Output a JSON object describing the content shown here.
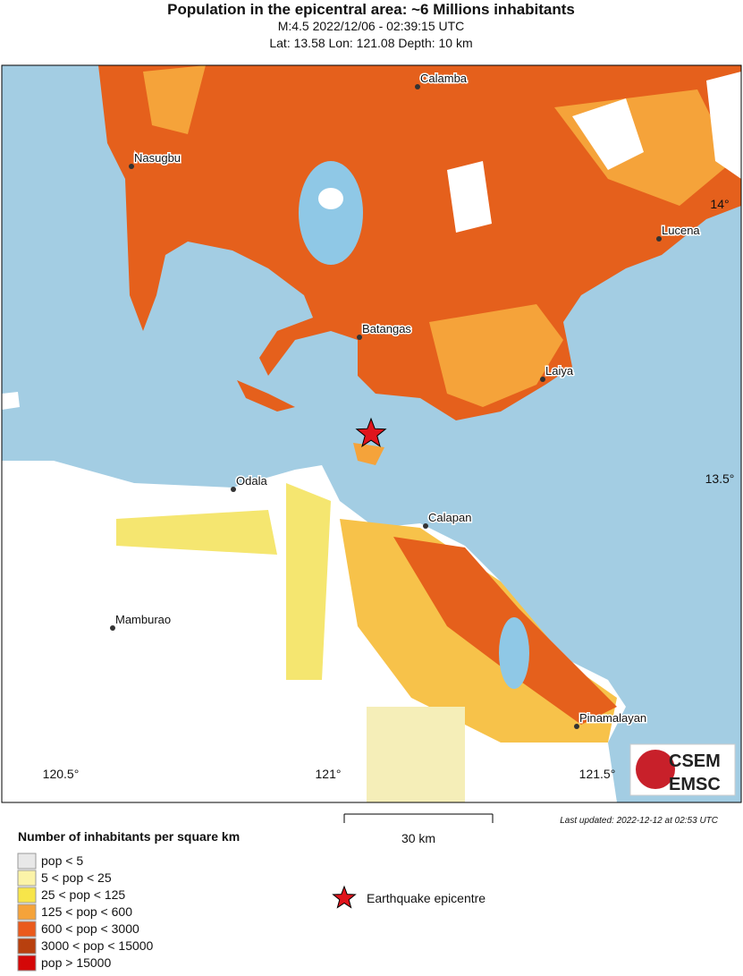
{
  "header": {
    "title": "Population in the epicentral area: ~6 Millions inhabitants",
    "line1": "M:4.5 2022/12/06 - 02:39:15 UTC",
    "line2": "Lat: 13.58 Lon: 121.08 Depth: 10 km"
  },
  "map": {
    "cities": [
      "Calamba",
      "Nasugbu",
      "Lucena",
      "Batangas",
      "Laiya",
      "Odala",
      "Calapan",
      "Mamburao",
      "Pinamalayan"
    ],
    "lat_labels": [
      "14°",
      "13.5°"
    ],
    "lon_labels": [
      "120.5°",
      "121°",
      "121.5°"
    ],
    "logo": [
      "CSEM",
      "EMSC"
    ]
  },
  "scale": {
    "label": "30 km"
  },
  "last_updated": "Last updated: 2022-12-12 at 02:53 UTC",
  "legend": {
    "title": "Number of inhabitants per square km",
    "items": [
      {
        "label": "pop < 5",
        "color": "#e8e8e8"
      },
      {
        "label": "5 < pop < 25",
        "color": "#fbf3a8"
      },
      {
        "label": "25 < pop < 125",
        "color": "#f7e54a"
      },
      {
        "label": "125 < pop < 600",
        "color": "#f5a33a"
      },
      {
        "label": "600 < pop < 3000",
        "color": "#ea5a1c"
      },
      {
        "label": "3000 < pop < 15000",
        "color": "#b8400e"
      },
      {
        "label": "pop > 15000",
        "color": "#d40808"
      }
    ],
    "epicentre": "Earthquake epicentre"
  }
}
